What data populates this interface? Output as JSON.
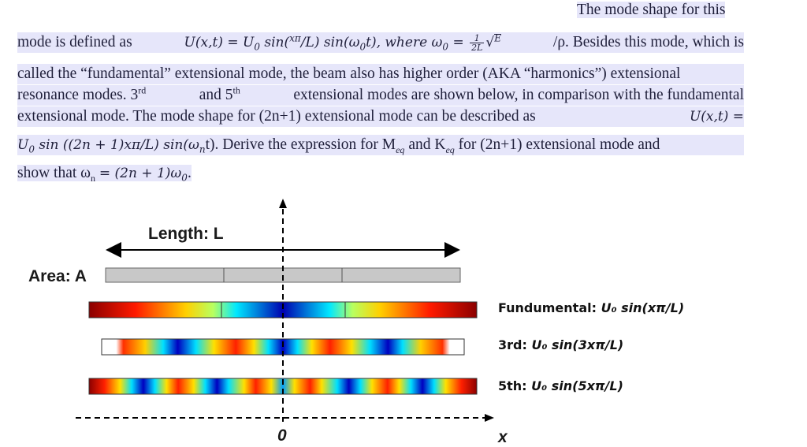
{
  "text": {
    "line1": "The mode shape for this",
    "line2a": "mode is defined as",
    "line2b": "U(x,t) = U",
    "line2c": "sin(",
    "line2d": "xπ",
    "line2e": "/L) sin(ω",
    "line2f": "t), where ω",
    "line2g": "E",
    "line2h": "/ρ. Besides this mode, which is",
    "line3": "called the “fundamental” extensional mode, the beam also has higher order (AKA “harmonics”) extensional",
    "line4a": "resonance modes. 3",
    "line4b": "rd",
    "line4c": "and 5",
    "line4d": "th",
    "line4e": "extensional modes are shown below, in comparison with the fundamental",
    "line5a": "extensional mode. The mode shape for (2n+1) extensional mode can be described as",
    "line5b": "U(x,t) =",
    "line6a": "U",
    "line6b": "sin ((2n + 1)xπ",
    "line6c": "/L) sin(ω",
    "line6d": "t). Derive the expression for M",
    "line6e": "eq",
    "line6f": "and K",
    "line6g": "eq",
    "line6h": "for (2n+1) extensional mode and",
    "line7a": "show that ω",
    "line7b": "= (2n + 1)ω",
    "sub0": "0",
    "subn": "n",
    "frac_num": "1",
    "frac_den": "2L"
  },
  "diagram": {
    "length_label": "Length: L",
    "area_label": "Area: A",
    "origin_label": "0",
    "x_label": "x",
    "modes": [
      {
        "name": "Fundumental:",
        "expr": "U₀ sin(xπ/L)"
      },
      {
        "name": "3rd:",
        "expr": "U₀ sin(3xπ/L)"
      },
      {
        "name": "5th:",
        "expr": "U₀ sin(5xπ/L)"
      }
    ],
    "colors": {
      "axis": "#000000",
      "grey_bar": "#c8c8c8",
      "dark_red": "#8b0000",
      "blue": "#0000cc",
      "cyan": "#00e0ff",
      "yellow": "#ffff00"
    }
  }
}
